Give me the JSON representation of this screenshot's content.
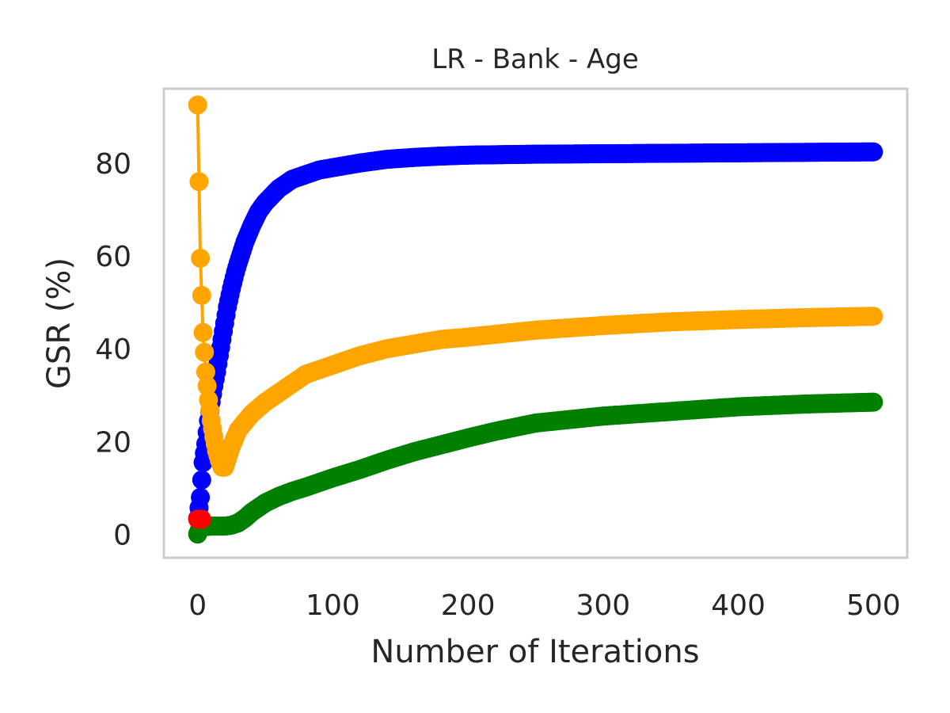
{
  "chart_data": {
    "type": "line",
    "title": "LR - Bank - Age",
    "xlabel": "Number of Iterations",
    "ylabel": "GSR (%)",
    "xlim": [
      -25,
      525
    ],
    "ylim": [
      -5,
      96
    ],
    "xticks": [
      0,
      100,
      200,
      300,
      400,
      500
    ],
    "yticks": [
      0,
      20,
      40,
      60,
      80
    ],
    "grid": false,
    "legend": "none",
    "series": [
      {
        "color": "#0000ff",
        "x": [
          0,
          2,
          4,
          6,
          8,
          10,
          12,
          14,
          16,
          18,
          20,
          22,
          25,
          28,
          30,
          35,
          40,
          45,
          50,
          55,
          60,
          70,
          80,
          90,
          100,
          120,
          140,
          160,
          180,
          200,
          250,
          300,
          350,
          400,
          450,
          500
        ],
        "y": [
          3.5,
          8,
          15.5,
          19.5,
          24.5,
          28.5,
          32,
          35,
          38.5,
          42,
          45.5,
          49,
          53,
          56.5,
          58.5,
          63,
          66.5,
          69.5,
          71.5,
          73,
          74.5,
          76.5,
          77.5,
          78.5,
          79,
          80,
          80.8,
          81.2,
          81.5,
          81.7,
          81.9,
          82,
          82.1,
          82.2,
          82.3,
          82.4
        ]
      },
      {
        "color": "#ffa500",
        "x": [
          0,
          2,
          4,
          6,
          8,
          10,
          12,
          14,
          16,
          18,
          20,
          25,
          30,
          40,
          50,
          60,
          70,
          80,
          90,
          100,
          120,
          140,
          160,
          180,
          200,
          250,
          300,
          350,
          400,
          450,
          500
        ],
        "y": [
          92.5,
          59.5,
          43.5,
          35,
          29,
          24.5,
          21,
          18,
          16,
          14.5,
          14.5,
          19,
          22.5,
          26,
          28.5,
          30.5,
          32.5,
          34.5,
          35.5,
          36.5,
          38.5,
          40,
          41,
          42,
          42.5,
          44,
          45,
          45.8,
          46.3,
          46.7,
          47
        ]
      },
      {
        "color": "#008000",
        "x": [
          0,
          2,
          5,
          10,
          15,
          20,
          25,
          30,
          35,
          40,
          50,
          60,
          70,
          80,
          90,
          100,
          120,
          140,
          160,
          180,
          200,
          220,
          250,
          300,
          350,
          400,
          450,
          500
        ],
        "y": [
          0.1,
          1.5,
          1.7,
          1.8,
          1.8,
          1.8,
          2.0,
          2.5,
          3.5,
          4.8,
          6.8,
          8.2,
          9.3,
          10.2,
          11.2,
          12.2,
          14,
          16,
          17.8,
          19.3,
          20.8,
          22.2,
          24,
          25.5,
          26.5,
          27.5,
          28.1,
          28.5
        ]
      },
      {
        "color": "#ff0000",
        "x": [
          0,
          3
        ],
        "y": [
          3.3,
          3.3
        ]
      }
    ]
  }
}
